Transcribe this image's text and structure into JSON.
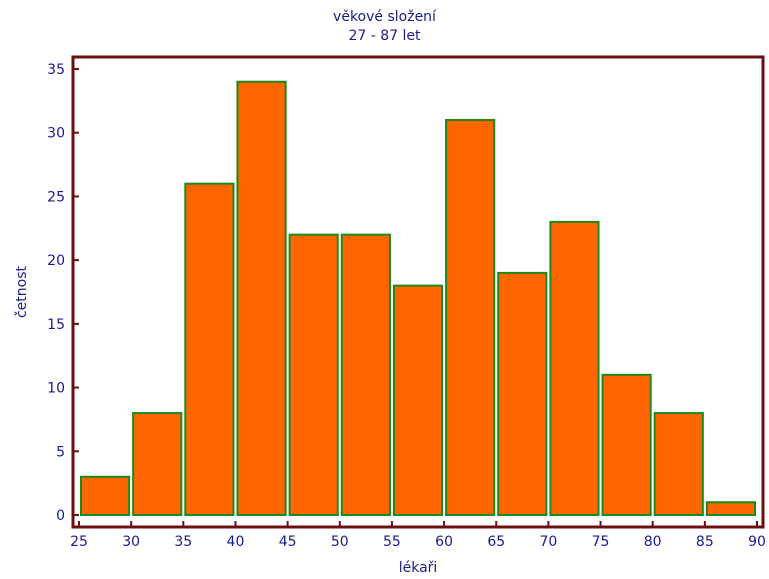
{
  "chart_data": {
    "type": "bar",
    "title": "věkové složení",
    "subtitle": "27 - 87 let",
    "xlabel": "lékaři",
    "ylabel": "četnost",
    "xlim": [
      25,
      90
    ],
    "ylim": [
      0,
      35
    ],
    "x_ticks": [
      25,
      30,
      35,
      40,
      45,
      50,
      55,
      60,
      65,
      70,
      75,
      80,
      85,
      90
    ],
    "y_ticks": [
      0,
      5,
      10,
      15,
      20,
      25,
      30,
      35
    ],
    "bins": [
      {
        "start": 25,
        "end": 30,
        "value": 3
      },
      {
        "start": 30,
        "end": 35,
        "value": 8
      },
      {
        "start": 35,
        "end": 40,
        "value": 26
      },
      {
        "start": 40,
        "end": 45,
        "value": 34
      },
      {
        "start": 45,
        "end": 50,
        "value": 22
      },
      {
        "start": 50,
        "end": 55,
        "value": 22
      },
      {
        "start": 55,
        "end": 60,
        "value": 18
      },
      {
        "start": 60,
        "end": 65,
        "value": 31
      },
      {
        "start": 65,
        "end": 70,
        "value": 19
      },
      {
        "start": 70,
        "end": 75,
        "value": 23
      },
      {
        "start": 75,
        "end": 80,
        "value": 11
      },
      {
        "start": 80,
        "end": 85,
        "value": 8
      },
      {
        "start": 85,
        "end": 90,
        "value": 1
      }
    ],
    "grid": false,
    "colors": {
      "bar_fill": "#ff6600",
      "bar_edge": "#1a8a1a",
      "frame": "#6b0f0f",
      "text": "#1a1a8c"
    }
  }
}
